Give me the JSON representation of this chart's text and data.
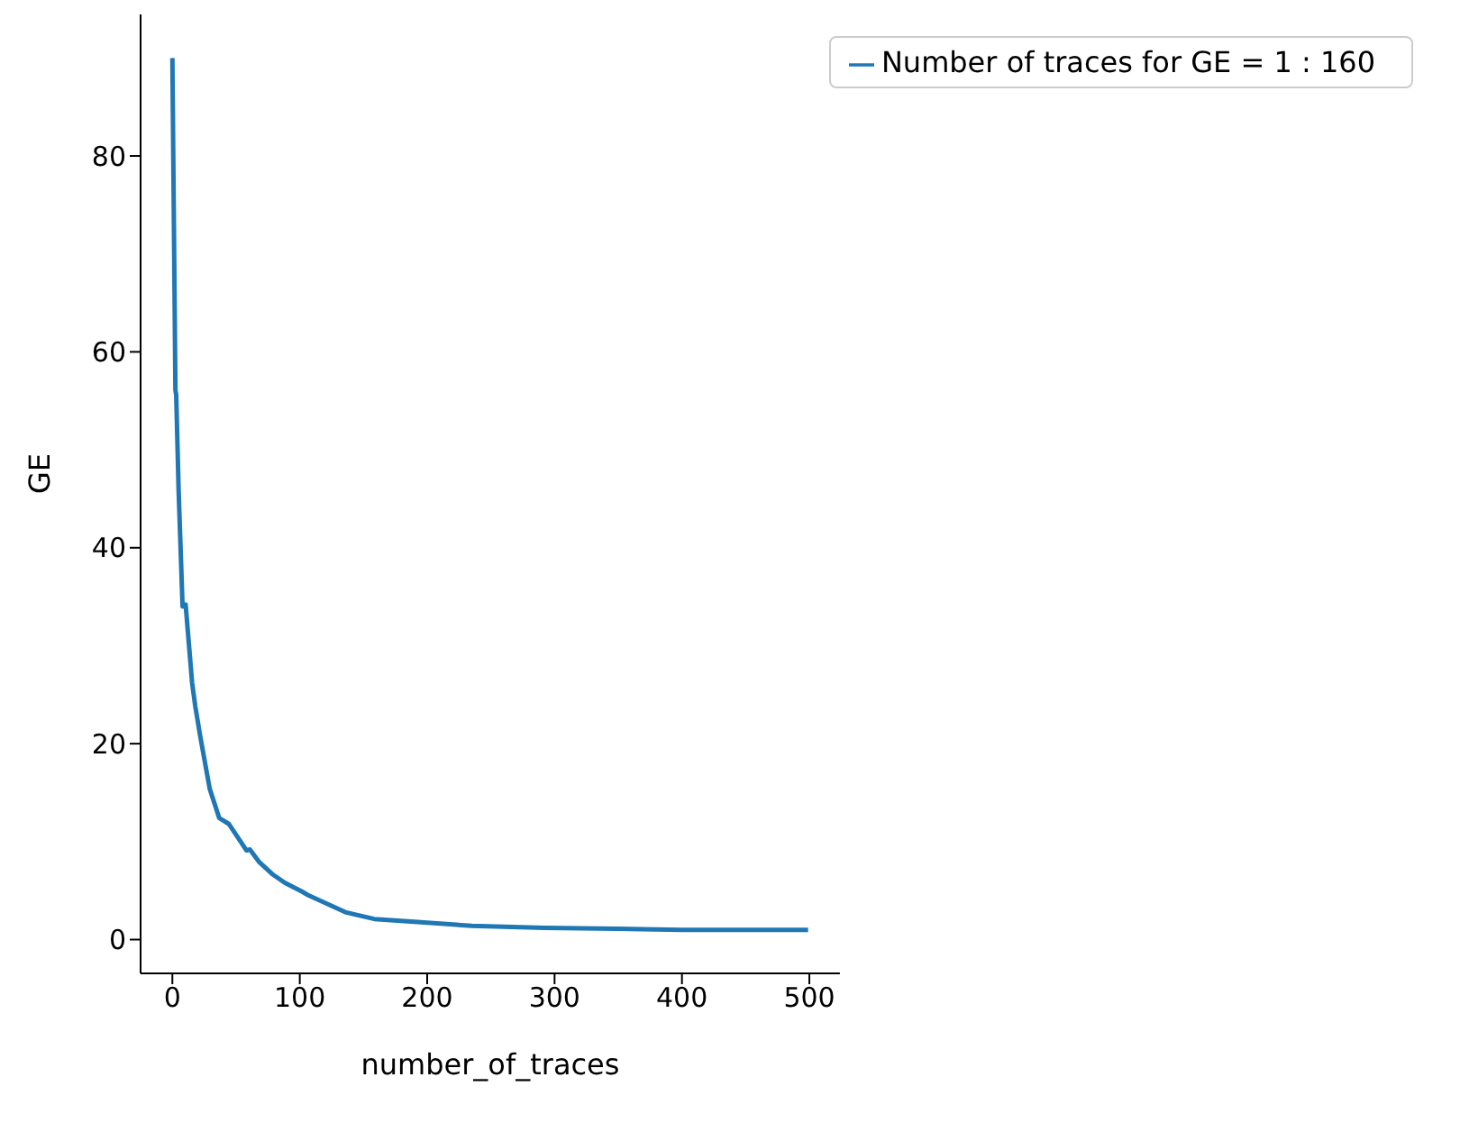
{
  "chart_data": {
    "type": "line",
    "xlabel": "number_of_traces",
    "ylabel": "GE",
    "series": [
      {
        "name": "Number of traces for GE = 1 : 160",
        "color": "#1f77b4",
        "x": [
          0,
          2.4,
          3,
          4.9,
          8,
          10.4,
          15.5,
          18,
          21.8,
          29.3,
          36.8,
          44.4,
          58.2,
          60.8,
          68.3,
          78.3,
          88.3,
          101.8,
          107,
          135.7,
          158.5,
          192.6,
          235,
          292,
          349,
          400,
          450,
          499
        ],
        "values": [
          90,
          56.1,
          55.6,
          45.9,
          34,
          34.2,
          26.2,
          23.8,
          20.8,
          15.4,
          12.4,
          11.8,
          9.1,
          9.2,
          7.9,
          6.7,
          5.8,
          4.9,
          4.5,
          2.8,
          2.1,
          1.8,
          1.4,
          1.2,
          1.1,
          1.0,
          1.0,
          1.0
        ]
      }
    ],
    "xlim": [
      -24.95,
      523.95
    ],
    "xticks": [
      0,
      100,
      200,
      300,
      400,
      500
    ],
    "ylim": [
      -3.45,
      94.45
    ],
    "yticks": [
      0,
      20,
      40,
      60,
      80
    ],
    "legend": "top right",
    "marker": "none",
    "line_style": "solid",
    "grid": false
  }
}
